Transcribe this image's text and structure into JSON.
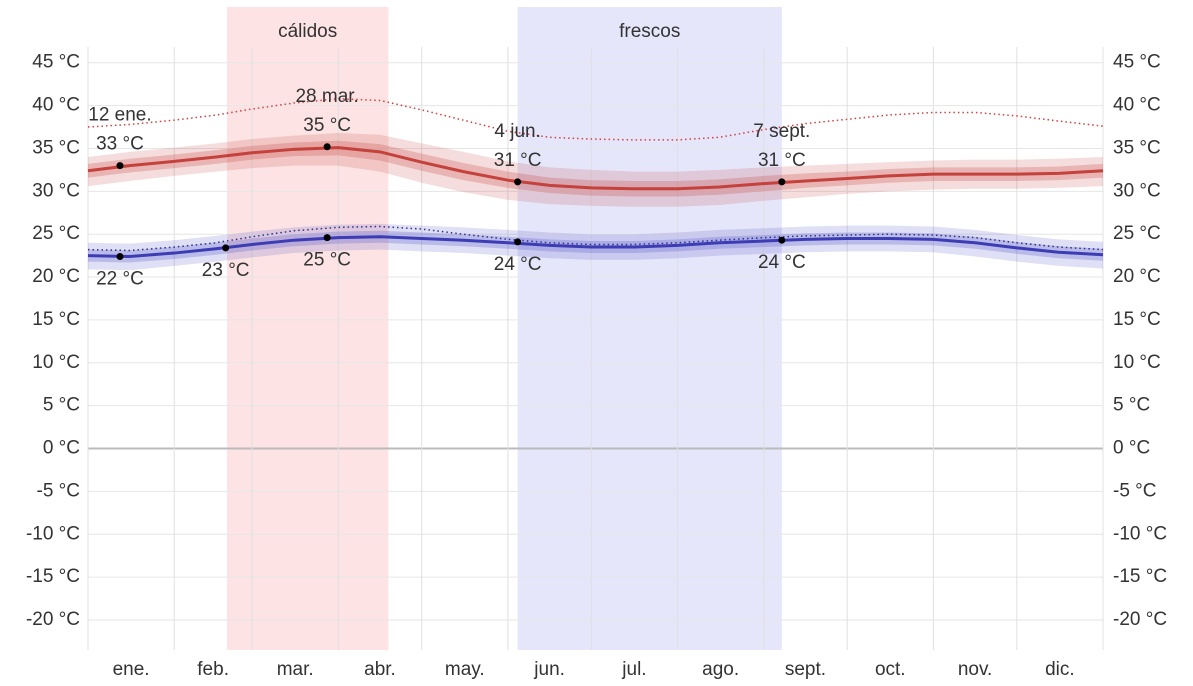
{
  "chart_data": {
    "type": "climate-band",
    "xlim": [
      0,
      365
    ],
    "ylim": [
      -23.5,
      51.5
    ],
    "yticks": [
      {
        "value": 45,
        "label": "45 °C"
      },
      {
        "value": 40,
        "label": "40 °C"
      },
      {
        "value": 35,
        "label": "35 °C"
      },
      {
        "value": 30,
        "label": "30 °C"
      },
      {
        "value": 25,
        "label": "25 °C"
      },
      {
        "value": 20,
        "label": "20 °C"
      },
      {
        "value": 15,
        "label": "15 °C"
      },
      {
        "value": 10,
        "label": "10 °C"
      },
      {
        "value": 5,
        "label": "5 °C"
      },
      {
        "value": 0,
        "label": "0 °C"
      },
      {
        "value": -5,
        "label": "-5 °C"
      },
      {
        "value": -10,
        "label": "-10 °C"
      },
      {
        "value": -15,
        "label": "-15 °C"
      },
      {
        "value": -20,
        "label": "-20 °C"
      }
    ],
    "xticks": [
      {
        "value": 15.5,
        "label": "ene."
      },
      {
        "value": 45,
        "label": "feb."
      },
      {
        "value": 74.5,
        "label": "mar."
      },
      {
        "value": 105,
        "label": "abr."
      },
      {
        "value": 135.5,
        "label": "may."
      },
      {
        "value": 166,
        "label": "jun."
      },
      {
        "value": 196.5,
        "label": "jul."
      },
      {
        "value": 227.5,
        "label": "ago."
      },
      {
        "value": 258,
        "label": "sept."
      },
      {
        "value": 288.5,
        "label": "oct."
      },
      {
        "value": 319,
        "label": "nov."
      },
      {
        "value": 349.5,
        "label": "dic."
      }
    ],
    "xgrid": [
      0,
      31,
      59,
      90,
      120,
      151,
      181,
      212,
      243,
      273,
      304,
      334,
      365
    ],
    "grid": true,
    "seasons": [
      {
        "label": "cálidos",
        "start": 50,
        "end": 108,
        "color": "#fde3e3"
      },
      {
        "label": "frescos",
        "start": 154.5,
        "end": 249.5,
        "color": "#e6e6fb"
      }
    ],
    "x": [
      0,
      15,
      31,
      46,
      59,
      74,
      90,
      105,
      120,
      135,
      151,
      166,
      181,
      196,
      212,
      227,
      243,
      258,
      273,
      288,
      304,
      319,
      334,
      349,
      365
    ],
    "high": {
      "color": "#c4413c",
      "band_color": "#c4413c",
      "mean": [
        32.4,
        33.0,
        33.5,
        34.0,
        34.5,
        34.9,
        35.1,
        34.6,
        33.4,
        32.3,
        31.3,
        30.7,
        30.4,
        30.3,
        30.3,
        30.5,
        30.9,
        31.2,
        31.5,
        31.8,
        32.0,
        32.0,
        32.0,
        32.1,
        32.4
      ],
      "p25": [
        31.6,
        32.2,
        32.7,
        33.2,
        33.7,
        34.1,
        34.2,
        33.6,
        32.4,
        31.3,
        30.4,
        29.8,
        29.5,
        29.4,
        29.4,
        29.6,
        30.0,
        30.4,
        30.7,
        31.0,
        31.2,
        31.2,
        31.2,
        31.3,
        31.6
      ],
      "p75": [
        33.2,
        33.8,
        34.3,
        34.8,
        35.3,
        35.7,
        35.9,
        35.5,
        34.4,
        33.3,
        32.3,
        31.6,
        31.3,
        31.2,
        31.2,
        31.4,
        31.8,
        32.1,
        32.3,
        32.6,
        32.8,
        32.8,
        32.8,
        32.9,
        33.2
      ],
      "p10": [
        30.6,
        31.2,
        31.8,
        32.3,
        32.7,
        33.0,
        33.0,
        32.3,
        31.0,
        29.9,
        29.0,
        28.5,
        28.3,
        28.2,
        28.2,
        28.4,
        28.9,
        29.3,
        29.7,
        30.0,
        30.2,
        30.3,
        30.3,
        30.4,
        30.6
      ],
      "p90": [
        34.0,
        34.6,
        35.1,
        35.6,
        36.1,
        36.5,
        36.8,
        36.6,
        35.6,
        34.6,
        33.5,
        32.8,
        32.5,
        32.3,
        32.3,
        32.5,
        32.8,
        33.0,
        33.2,
        33.4,
        33.6,
        33.7,
        33.7,
        33.8,
        34.0
      ]
    },
    "low": {
      "color": "#3c3cb4",
      "band_color": "#5050c8",
      "mean": [
        22.5,
        22.4,
        22.8,
        23.3,
        23.8,
        24.3,
        24.6,
        24.7,
        24.5,
        24.3,
        24.0,
        23.7,
        23.5,
        23.5,
        23.7,
        24.0,
        24.2,
        24.4,
        24.5,
        24.5,
        24.4,
        24.0,
        23.4,
        22.9,
        22.6
      ],
      "p25": [
        21.8,
        21.7,
        22.1,
        22.6,
        23.1,
        23.6,
        23.9,
        24.0,
        23.8,
        23.6,
        23.3,
        23.0,
        22.8,
        22.8,
        23.0,
        23.3,
        23.5,
        23.7,
        23.8,
        23.8,
        23.7,
        23.3,
        22.7,
        22.2,
        21.9
      ],
      "p75": [
        23.2,
        23.1,
        23.5,
        24.0,
        24.5,
        25.0,
        25.3,
        25.4,
        25.2,
        25.0,
        24.7,
        24.4,
        24.2,
        24.2,
        24.4,
        24.7,
        24.9,
        25.1,
        25.2,
        25.2,
        25.1,
        24.7,
        24.1,
        23.6,
        23.3
      ],
      "p10": [
        20.9,
        20.8,
        21.3,
        21.8,
        22.3,
        22.8,
        23.1,
        23.2,
        23.0,
        22.8,
        22.5,
        22.2,
        22.0,
        22.0,
        22.2,
        22.5,
        22.7,
        22.9,
        23.0,
        23.0,
        22.9,
        22.4,
        21.8,
        21.3,
        21.0
      ],
      "p90": [
        24.0,
        23.9,
        24.3,
        24.8,
        25.3,
        25.8,
        26.1,
        26.2,
        26.0,
        25.8,
        25.5,
        25.2,
        25.0,
        25.0,
        25.2,
        25.5,
        25.7,
        25.9,
        26.0,
        26.0,
        25.9,
        25.5,
        24.9,
        24.4,
        24.1
      ]
    },
    "dotted": [
      {
        "color": "#d04040",
        "values": [
          37.5,
          37.8,
          38.3,
          38.9,
          39.6,
          40.3,
          40.8,
          40.6,
          39.5,
          38.3,
          37.0,
          36.3,
          36.1,
          36.0,
          36.0,
          36.3,
          37.2,
          37.9,
          38.4,
          38.9,
          39.2,
          39.2,
          38.8,
          38.2,
          37.6
        ]
      },
      {
        "color": "#30308a",
        "values": [
          23.2,
          23.1,
          23.5,
          24.0,
          24.7,
          25.4,
          25.8,
          25.9,
          25.6,
          25.0,
          24.4,
          24.0,
          23.8,
          23.8,
          24.0,
          24.3,
          24.6,
          24.8,
          24.9,
          25.0,
          24.9,
          24.6,
          24.0,
          23.5,
          23.2
        ]
      }
    ],
    "annotations": [
      {
        "x": 11.5,
        "value": 33,
        "date": "12 ene.",
        "label": "33 °C",
        "side": "above"
      },
      {
        "x": 86,
        "value": 35.2,
        "date": "28 mar.",
        "label": "35 °C",
        "side": "above"
      },
      {
        "x": 154.5,
        "value": 31.1,
        "date": "4 jun.",
        "label": "31 °C",
        "side": "above"
      },
      {
        "x": 249.5,
        "value": 31.1,
        "date": "7 sept.",
        "label": "31 °C",
        "side": "above"
      },
      {
        "x": 11.5,
        "value": 22.4,
        "label": "22 °C",
        "side": "below"
      },
      {
        "x": 49.5,
        "value": 23.4,
        "label": "23 °C",
        "side": "below"
      },
      {
        "x": 86,
        "value": 24.6,
        "label": "25 °C",
        "side": "below"
      },
      {
        "x": 154.5,
        "value": 24.1,
        "label": "24 °C",
        "side": "below"
      },
      {
        "x": 249.5,
        "value": 24.3,
        "label": "24 °C",
        "side": "below"
      }
    ]
  }
}
